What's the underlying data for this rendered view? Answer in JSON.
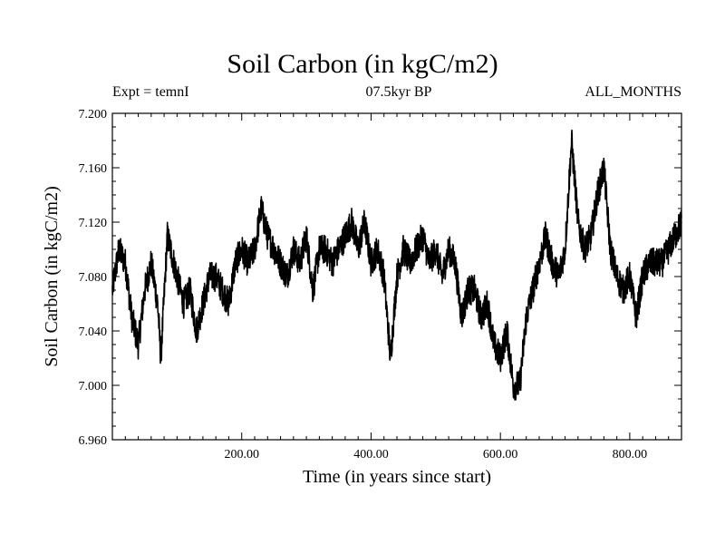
{
  "chart_data": {
    "type": "line",
    "title": "Soil Carbon (in kgC/m2)",
    "subtitle_left": "Expt = temnI",
    "subtitle_center": "07.5kyr BP",
    "subtitle_right": "ALL_MONTHS",
    "xlabel": "Time (in years since start)",
    "ylabel": "Soil Carbon (in kgC/m2)",
    "xlim": [
      0,
      880
    ],
    "ylim": [
      6.96,
      7.2
    ],
    "xticks": [
      200,
      400,
      600,
      800
    ],
    "xtick_labels": [
      "200.00",
      "400.00",
      "600.00",
      "800.00"
    ],
    "yticks": [
      6.96,
      7.0,
      7.04,
      7.08,
      7.12,
      7.16,
      7.2
    ],
    "ytick_labels": [
      "6.960",
      "7.000",
      "7.040",
      "7.080",
      "7.120",
      "7.160",
      "7.200"
    ],
    "grid": false,
    "series": [
      {
        "name": "Soil Carbon",
        "x": [
          0,
          10,
          20,
          30,
          40,
          50,
          60,
          70,
          75,
          85,
          100,
          110,
          120,
          130,
          140,
          150,
          160,
          170,
          180,
          190,
          200,
          210,
          220,
          230,
          240,
          250,
          260,
          270,
          280,
          290,
          300,
          310,
          320,
          330,
          340,
          350,
          360,
          370,
          380,
          390,
          400,
          410,
          420,
          430,
          440,
          450,
          460,
          470,
          480,
          490,
          500,
          510,
          520,
          530,
          540,
          550,
          560,
          570,
          580,
          590,
          600,
          610,
          620,
          630,
          640,
          650,
          660,
          670,
          680,
          690,
          700,
          710,
          720,
          730,
          740,
          750,
          760,
          770,
          780,
          790,
          800,
          810,
          820,
          830,
          840,
          850,
          860,
          870,
          880
        ],
        "values": [
          7.07,
          7.1,
          7.09,
          7.05,
          7.03,
          7.07,
          7.09,
          7.06,
          7.02,
          7.11,
          7.08,
          7.06,
          7.07,
          7.04,
          7.06,
          7.08,
          7.08,
          7.07,
          7.06,
          7.09,
          7.1,
          7.09,
          7.1,
          7.13,
          7.11,
          7.1,
          7.09,
          7.08,
          7.1,
          7.09,
          7.11,
          7.07,
          7.1,
          7.1,
          7.09,
          7.1,
          7.11,
          7.12,
          7.1,
          7.12,
          7.09,
          7.1,
          7.08,
          7.02,
          7.08,
          7.1,
          7.09,
          7.1,
          7.11,
          7.09,
          7.1,
          7.08,
          7.1,
          7.09,
          7.05,
          7.07,
          7.07,
          7.05,
          7.06,
          7.03,
          7.02,
          7.04,
          7.0,
          7.0,
          7.05,
          7.07,
          7.09,
          7.11,
          7.09,
          7.08,
          7.1,
          7.18,
          7.12,
          7.1,
          7.11,
          7.14,
          7.16,
          7.1,
          7.08,
          7.07,
          7.08,
          7.05,
          7.08,
          7.09,
          7.09,
          7.09,
          7.1,
          7.11,
          7.12
        ]
      }
    ],
    "colors": {
      "line": "#000000",
      "axes": "#000000",
      "background": "#ffffff"
    }
  }
}
